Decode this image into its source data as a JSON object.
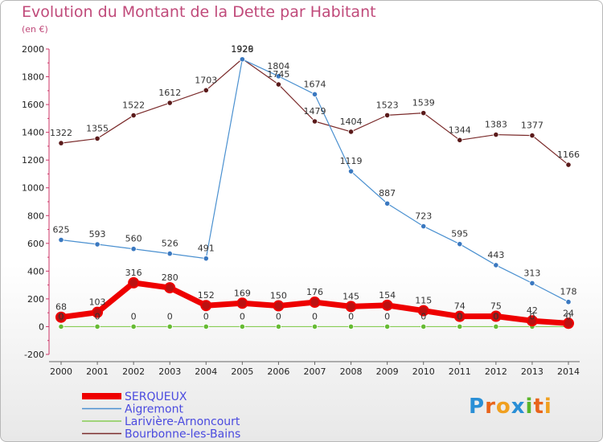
{
  "title": "Evolution du Montant de la Dette par Habitant",
  "unit": "(en €)",
  "logo": {
    "letters": [
      "P",
      "r",
      "o",
      "x",
      "i",
      "t",
      "i"
    ],
    "colors": [
      "#2a8fd6",
      "#e8641b",
      "#f0a020",
      "#2a8fd6",
      "#5ab52a",
      "#e8641b",
      "#f0a020"
    ]
  },
  "chart_data": {
    "type": "line",
    "title": "Evolution du Montant de la Dette par Habitant",
    "ylabel": "(en €)",
    "xlabel": "",
    "ylim": [
      -200,
      2000
    ],
    "yticks": [
      -200,
      0,
      200,
      400,
      600,
      800,
      1000,
      1200,
      1400,
      1600,
      1800,
      2000
    ],
    "x": [
      "2000",
      "2001",
      "2002",
      "2003",
      "2004",
      "2005",
      "2006",
      "2007",
      "2008",
      "2009",
      "2010",
      "2011",
      "2012",
      "2013",
      "2014"
    ],
    "series": [
      {
        "name": "SERQUEUX",
        "color": "#ee0000",
        "marker": "#bb1111",
        "values": [
          68,
          103,
          316,
          280,
          152,
          169,
          150,
          176,
          145,
          154,
          115,
          74,
          75,
          42,
          24
        ]
      },
      {
        "name": "Aigremont",
        "color": "#4a90d0",
        "marker": "#3a78c0",
        "values": [
          625,
          593,
          560,
          526,
          491,
          1926,
          1804,
          1674,
          1119,
          887,
          723,
          595,
          443,
          313,
          178
        ]
      },
      {
        "name": "Larivière-Arnoncourt",
        "color": "#88cc55",
        "marker": "#66bb33",
        "values": [
          0,
          0,
          0,
          0,
          0,
          0,
          0,
          0,
          0,
          0,
          0,
          0,
          0,
          0,
          0
        ]
      },
      {
        "name": "Bourbonne-les-Bains",
        "color": "#7a2a2a",
        "marker": "#5a1a1a",
        "values": [
          1322,
          1355,
          1522,
          1612,
          1703,
          1929,
          1745,
          1479,
          1404,
          1523,
          1539,
          1344,
          1383,
          1377,
          1166
        ]
      }
    ],
    "labels_shown": {
      "SERQUEUX": [
        "68",
        "103",
        "316",
        "280",
        "152",
        "169",
        "150",
        "176",
        "145",
        "154",
        "115",
        "74",
        "75",
        "42",
        "24"
      ],
      "Aigremont": [
        "625",
        "593",
        "560",
        "526",
        "491",
        "1926",
        "1804",
        "",
        "1119",
        "887",
        "723",
        "595",
        "443",
        "313",
        "178"
      ],
      "Larivière-Arnoncourt": [
        "0",
        "0",
        "0",
        "0",
        "0",
        "0",
        "0",
        "0",
        "0",
        "0",
        "0",
        "0",
        "0",
        "0",
        "0"
      ],
      "Bourbonne-les-Bains": [
        "1322",
        "1355",
        "1522",
        "1612",
        "1703",
        "1929",
        "1745",
        "1479",
        "1404",
        "1523",
        "1539",
        "1344",
        "1383",
        "1377",
        "1166"
      ],
      "Aigremont_extra": {
        "index": 7,
        "text": "1674"
      }
    },
    "legend": [
      "SERQUEUX",
      "Aigremont",
      "Larivière-Arnoncourt",
      "Bourbonne-les-Bains"
    ],
    "grid": false,
    "legend_position": "bottom-left"
  }
}
